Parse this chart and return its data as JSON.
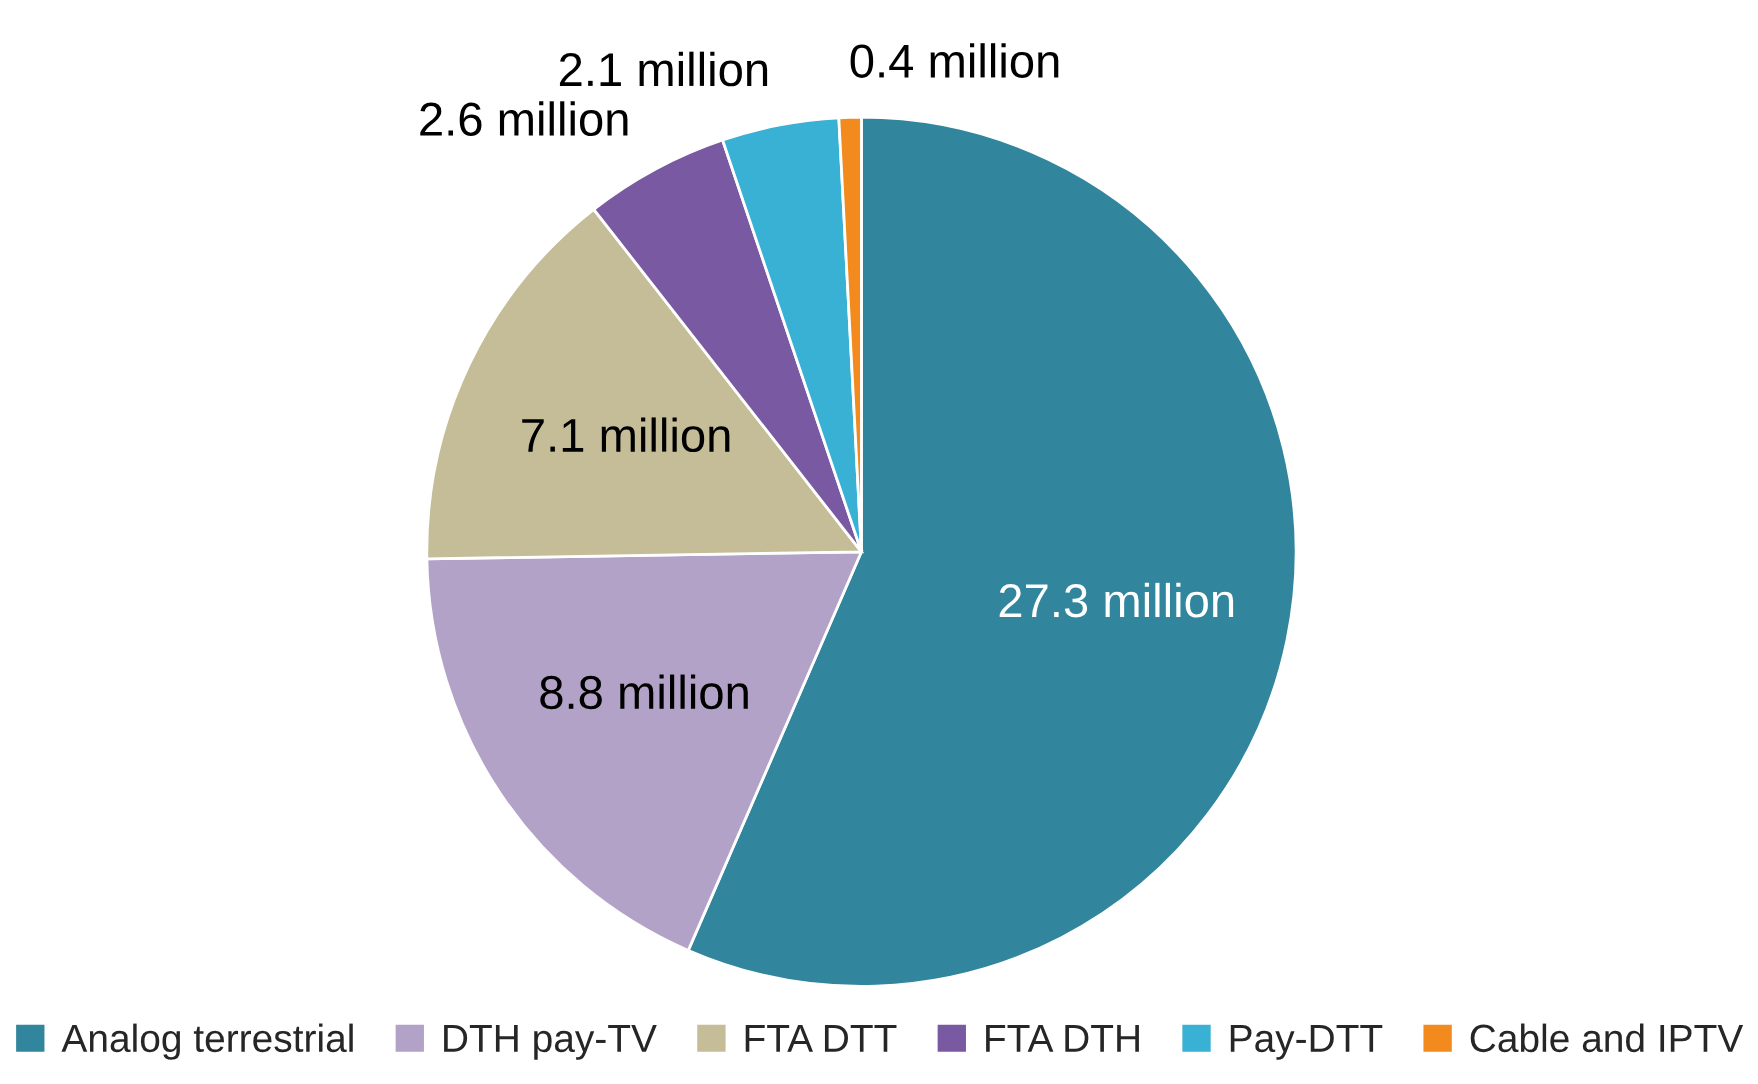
{
  "chart_data": {
    "type": "pie",
    "categories": [
      "Analog terrestrial",
      "DTH pay-TV",
      "FTA DTT",
      "FTA DTH",
      "Pay-DTT",
      "Cable and IPTV"
    ],
    "values": [
      27.3,
      8.8,
      7.1,
      2.6,
      2.1,
      0.4
    ],
    "value_labels": [
      "27.3 million",
      "8.8 million",
      "7.1 million",
      "2.6 million",
      "2.1 million",
      "0.4 million"
    ],
    "colors": [
      "#31859c",
      "#b3a2c7",
      "#c4bd97",
      "#7a59a3",
      "#38b1d4",
      "#f28a1e"
    ],
    "legend": "bottom"
  }
}
